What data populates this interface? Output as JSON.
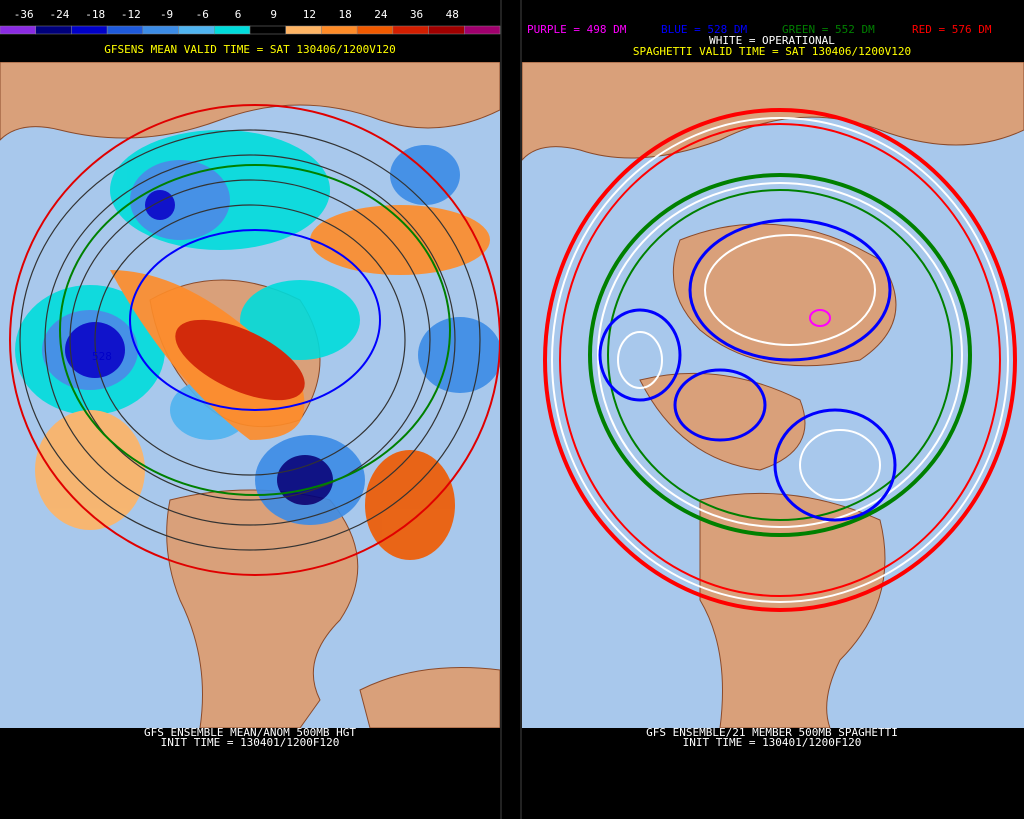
{
  "left_panel": {
    "colorbar": {
      "labels": [
        "-36",
        "-24",
        "-18",
        "-12",
        "-9",
        "-6",
        "6",
        "9",
        "12",
        "18",
        "24",
        "36",
        "48"
      ],
      "colors": [
        "#8a2be2",
        "#00007a",
        "#0000c8",
        "#1e5adc",
        "#3c8ce6",
        "#50b4f0",
        "#00dcdc",
        "#000000",
        "#ffb464",
        "#ff8c28",
        "#f05a00",
        "#d21e00",
        "#a00000",
        "#a0006e"
      ]
    },
    "subtitle": "GFSENS MEAN VALID TIME = SAT 130406/1200V120",
    "contour_label": "528",
    "footer": [
      "GFS ENSEMBLE MEAN/ANOM 500MB HGT",
      "INIT TIME = 130401/1200F120"
    ]
  },
  "right_panel": {
    "legend": [
      {
        "text": "PURPLE = 498 DM",
        "color": "#ff00ff"
      },
      {
        "text": "BLUE = 528 DM",
        "color": "#0000ff"
      },
      {
        "text": "GREEN = 552 DM",
        "color": "#008000"
      },
      {
        "text": "RED = 576 DM",
        "color": "#ff0000"
      }
    ],
    "operational": "WHITE = OPERATIONAL",
    "subtitle": "SPAGHETTI VALID TIME = SAT 130406/1200V120",
    "footer": [
      "GFS ENSEMBLE/21 MEMBER 500MB SPAGHETTI",
      "INIT TIME = 130401/1200F120"
    ]
  }
}
